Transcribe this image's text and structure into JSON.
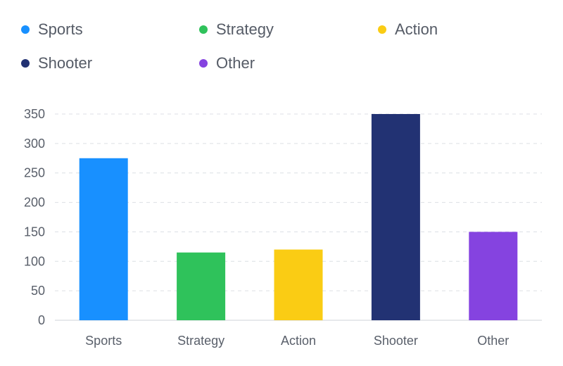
{
  "chart_data": {
    "type": "bar",
    "categories": [
      "Sports",
      "Strategy",
      "Action",
      "Shooter",
      "Other"
    ],
    "values": [
      275,
      115,
      120,
      350,
      150
    ],
    "colors": [
      "#1890ff",
      "#2fc25b",
      "#facc14",
      "#223273",
      "#8543e0"
    ],
    "title": "",
    "xlabel": "",
    "ylabel": "",
    "ylim": [
      0,
      350
    ],
    "yticks": [
      0,
      50,
      100,
      150,
      200,
      250,
      300,
      350
    ],
    "grid": true,
    "legend_position": "top"
  },
  "legend": {
    "items": [
      {
        "label": "Sports",
        "color": "#1890ff"
      },
      {
        "label": "Strategy",
        "color": "#2fc25b"
      },
      {
        "label": "Action",
        "color": "#facc14"
      },
      {
        "label": "Shooter",
        "color": "#223273"
      },
      {
        "label": "Other",
        "color": "#8543e0"
      }
    ]
  }
}
